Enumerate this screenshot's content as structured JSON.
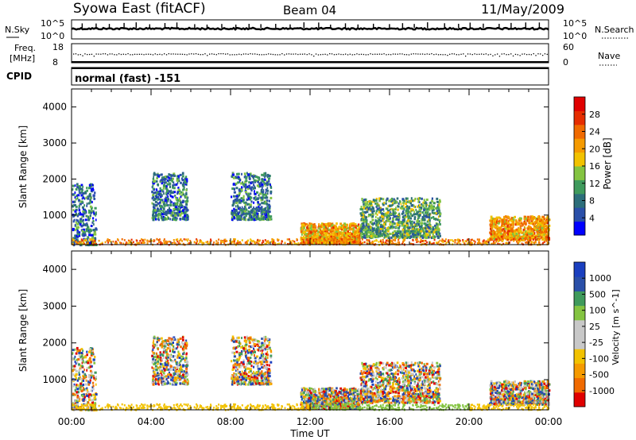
{
  "header": {
    "title": "Syowa East (fitACF)",
    "beam": "Beam 04",
    "date": "11/May/2009"
  },
  "nsky_panel": {
    "left_label": "N.Sky",
    "right_label": "N.Search",
    "left_ticks": [
      "10^5",
      "10^0"
    ],
    "right_ticks": [
      "10^5",
      "10^0"
    ]
  },
  "freq_panel": {
    "left_label_1": "Freq.",
    "left_label_2": "[MHz]",
    "right_label": "Nave",
    "left_ticks": [
      "18",
      "8"
    ],
    "right_ticks": [
      "60",
      "0"
    ]
  },
  "cpid": {
    "label": "CPID",
    "text": "normal (fast) -151"
  },
  "chart_data": [
    {
      "type": "heatmap",
      "name": "power",
      "ylabel": "Slant Range [km]",
      "xlabel": "",
      "x_ticks": [
        "00:00",
        "04:00",
        "08:00",
        "12:00",
        "16:00",
        "20:00",
        "00:00"
      ],
      "xlim_hours": [
        0,
        24
      ],
      "ylim_km": [
        180,
        4500
      ],
      "y_ticks": [
        1000,
        2000,
        3000,
        4000
      ],
      "colorbar_label": "Power [dB]",
      "colorbar_ticks": [
        "28",
        "24",
        "20",
        "16",
        "12",
        "8",
        "4"
      ],
      "colors": [
        "#0000ff",
        "#2a4fa8",
        "#2c6e7a",
        "#3f9a5c",
        "#84c441",
        "#f2c200",
        "#f59a00",
        "#f06a00",
        "#e62d00",
        "#e00000"
      ],
      "echo_regions": [
        {
          "t0": 0.0,
          "t1": 1.2,
          "r0": 200,
          "r1": 1900,
          "level": 2
        },
        {
          "t0": 4.0,
          "t1": 5.8,
          "r0": 900,
          "r1": 2200,
          "level": 2
        },
        {
          "t0": 8.0,
          "t1": 10.0,
          "r0": 900,
          "r1": 2200,
          "level": 2
        },
        {
          "t0": 11.5,
          "t1": 14.5,
          "r0": 250,
          "r1": 800,
          "level": 6
        },
        {
          "t0": 14.5,
          "t1": 18.5,
          "r0": 400,
          "r1": 1500,
          "level": 3
        },
        {
          "t0": 21.0,
          "t1": 24.0,
          "r0": 350,
          "r1": 1000,
          "level": 6
        }
      ]
    },
    {
      "type": "heatmap",
      "name": "velocity",
      "ylabel": "Slant Range [km]",
      "xlabel": "Time UT",
      "x_ticks": [
        "00:00",
        "04:00",
        "08:00",
        "12:00",
        "16:00",
        "20:00",
        "00:00"
      ],
      "xlim_hours": [
        0,
        24
      ],
      "ylim_km": [
        180,
        4500
      ],
      "y_ticks": [
        1000,
        2000,
        3000,
        4000
      ],
      "colorbar_label": "Velocity [m s^-1]",
      "colorbar_ticks": [
        "1000",
        "500",
        "100",
        "25",
        "-25",
        "-100",
        "-500",
        "-1000"
      ],
      "colors": [
        "#e00000",
        "#f06a00",
        "#f59a00",
        "#f2c200",
        "#c8c8c8",
        "#c8c8c8",
        "#84c441",
        "#3f9a5c",
        "#2a4fa8",
        "#1a3fbf"
      ]
    }
  ]
}
